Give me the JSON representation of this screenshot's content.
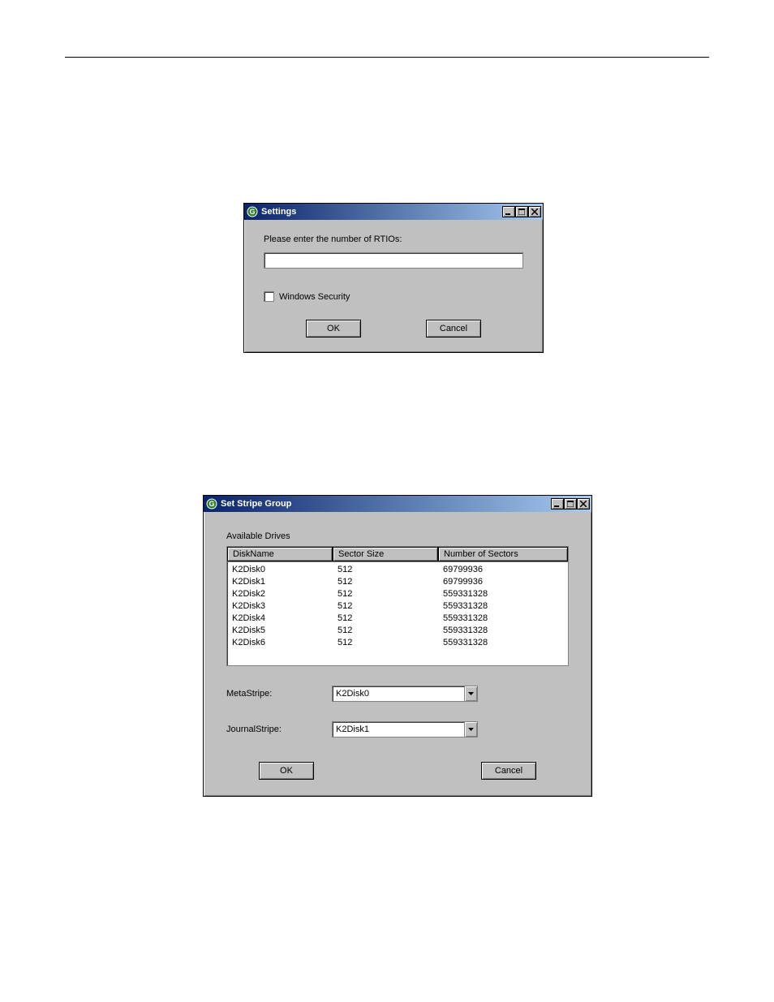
{
  "settings": {
    "title": "Settings",
    "prompt": "Please enter the number of RTIOs:",
    "rtio_value": "",
    "checkbox_label": "Windows Security",
    "checkbox_checked": false,
    "ok_label": "OK",
    "cancel_label": "Cancel"
  },
  "stripe": {
    "title": "Set Stripe Group",
    "available_label": "Available Drives",
    "columns": {
      "diskname": "DiskName",
      "sector_size": "Sector Size",
      "num_sectors": "Number of Sectors"
    },
    "drives": [
      {
        "name": "K2Disk0",
        "sector": "512",
        "num": "69799936"
      },
      {
        "name": "K2Disk1",
        "sector": "512",
        "num": "69799936"
      },
      {
        "name": "K2Disk2",
        "sector": "512",
        "num": "559331328"
      },
      {
        "name": "K2Disk3",
        "sector": "512",
        "num": "559331328"
      },
      {
        "name": "K2Disk4",
        "sector": "512",
        "num": "559331328"
      },
      {
        "name": "K2Disk5",
        "sector": "512",
        "num": "559331328"
      },
      {
        "name": "K2Disk6",
        "sector": "512",
        "num": "559331328"
      }
    ],
    "meta_label": "MetaStripe:",
    "meta_value": "K2Disk0",
    "journal_label": "JournalStripe:",
    "journal_value": "K2Disk1",
    "ok_label": "OK",
    "cancel_label": "Cancel"
  },
  "colors": {
    "window_bg": "#c0c0c0",
    "titlebar_start": "#0a246a",
    "titlebar_end": "#a6caf0",
    "titlebar_text": "#ffffff",
    "input_bg": "#ffffff",
    "border_dark": "#808080",
    "border_darker": "#404040",
    "border_light": "#ffffff",
    "text": "#000000"
  }
}
